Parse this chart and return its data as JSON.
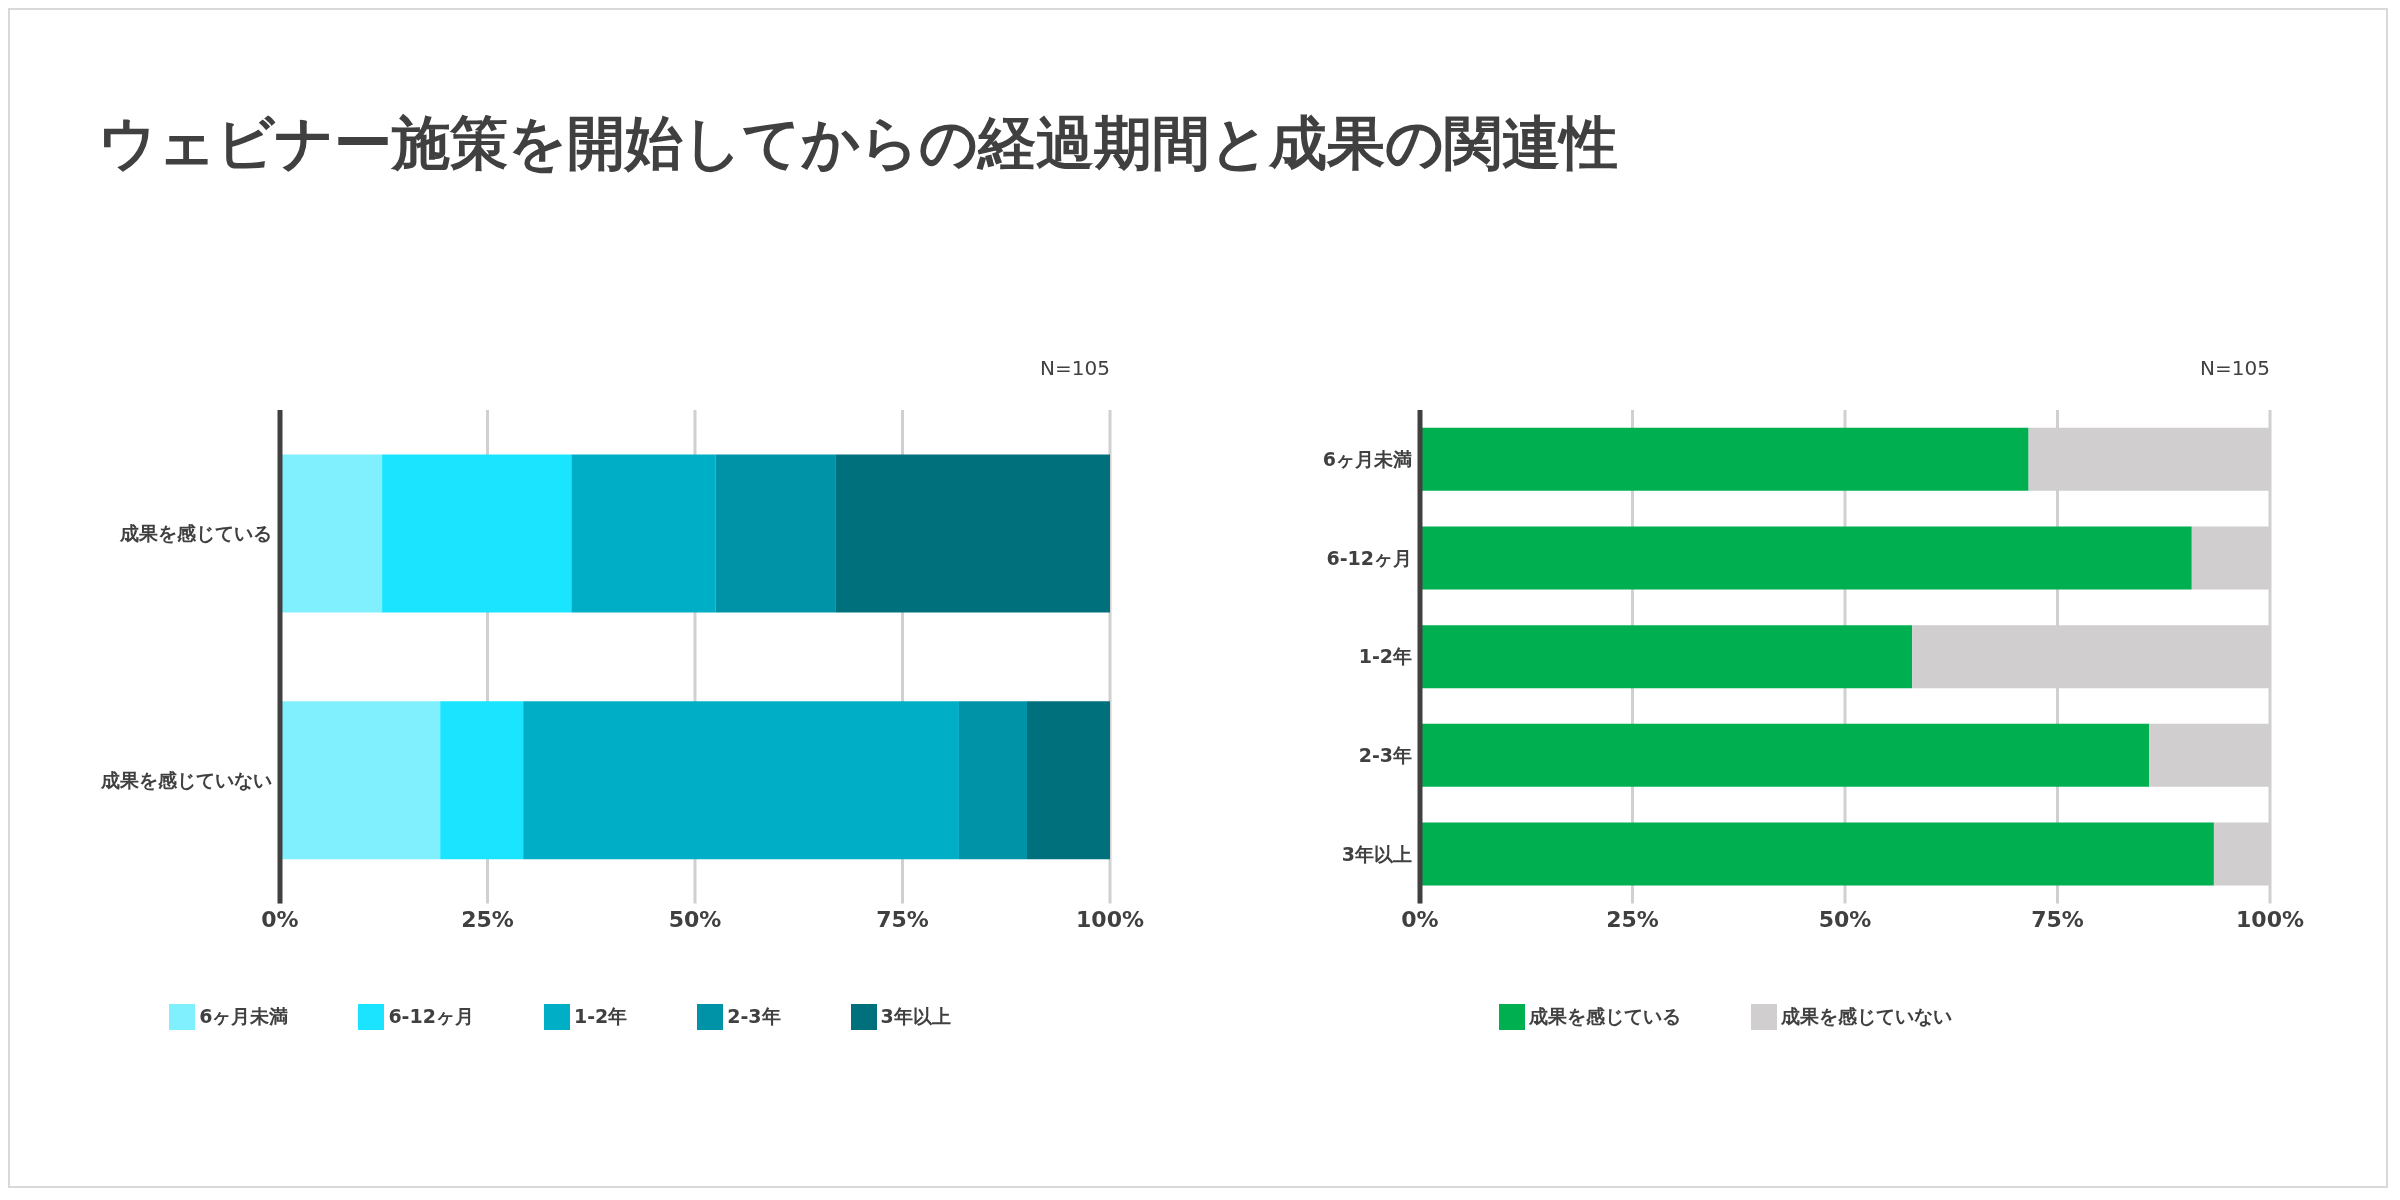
{
  "chart_data": [
    {
      "type": "bar",
      "title": "ウェビナー施策を開始してからの経過期間と成果の関連性",
      "orientation": "horizontal",
      "stacked": true,
      "categories": [
        "成果を感じている",
        "成果を感じていない"
      ],
      "series": [
        {
          "name": "6ヶ月未満",
          "color": "#80f0ff",
          "values": [
            12.3,
            19.3
          ]
        },
        {
          "name": "6-12ヶ月",
          "color": "#1ae4ff",
          "values": [
            22.8,
            10.0
          ]
        },
        {
          "name": "1-2年",
          "color": "#00aec6",
          "values": [
            17.4,
            52.5
          ]
        },
        {
          "name": "2-3年",
          "color": "#0093a8",
          "values": [
            14.4,
            8.2
          ]
        },
        {
          "name": "3年以上",
          "color": "#00707d",
          "values": [
            33.1,
            10.0
          ]
        }
      ],
      "xlim": [
        0,
        100
      ],
      "xticks": [
        {
          "value": 0,
          "label": "0%"
        },
        {
          "value": 25,
          "label": "25%"
        },
        {
          "value": 50,
          "label": "50%"
        },
        {
          "value": 75,
          "label": "75%"
        },
        {
          "value": 100,
          "label": "100%"
        }
      ],
      "grid": "x",
      "legend": "bottom",
      "annotations": [
        "N=105"
      ]
    },
    {
      "type": "bar",
      "orientation": "horizontal",
      "stacked": true,
      "categories": [
        "6ヶ月未満",
        "6-12ヶ月",
        "1-2年",
        "2-3年",
        "3年以上"
      ],
      "series": [
        {
          "name": "成果を感じている",
          "color": "#00b050",
          "values": [
            71.6,
            90.8,
            57.9,
            85.8,
            93.4
          ]
        },
        {
          "name": "成果を感じていない",
          "color": "#d0cece",
          "values": [
            28.4,
            9.2,
            42.1,
            14.2,
            6.6
          ]
        }
      ],
      "xlim": [
        0,
        100
      ],
      "xticks": [
        {
          "value": 0,
          "label": "0%"
        },
        {
          "value": 25,
          "label": "25%"
        },
        {
          "value": 50,
          "label": "50%"
        },
        {
          "value": 75,
          "label": "75%"
        },
        {
          "value": 100,
          "label": "100%"
        }
      ],
      "grid": "x",
      "legend": "bottom",
      "annotations": [
        "N=105"
      ]
    }
  ]
}
